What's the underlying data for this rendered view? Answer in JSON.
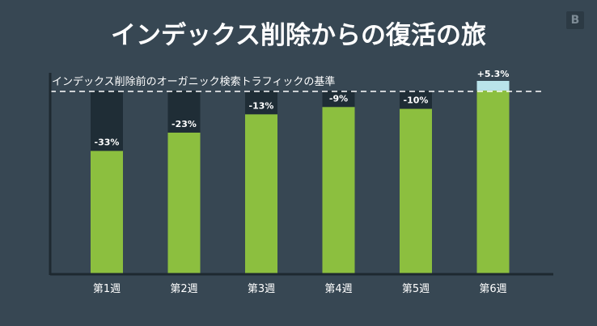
{
  "title": "インデックス削除からの復活の旅",
  "logo_text": "B",
  "chart_data": {
    "type": "bar",
    "baseline_label": "インデックス削除前のオーガニック検索トラフィックの基準",
    "categories": [
      "第1週",
      "第2週",
      "第3週",
      "第4週",
      "第5週",
      "第6週"
    ],
    "values": [
      -33,
      -23,
      -13,
      -9,
      -10,
      5.3
    ],
    "value_labels": [
      "-33%",
      "-23%",
      "-13%",
      "-9%",
      "-10%",
      "+5.3%"
    ],
    "baseline_value": 0,
    "ylim": [
      -100,
      5.3
    ],
    "colors": {
      "bar": "#8cbf3f",
      "deficit": "#1f2d36",
      "surplus": "#b9e3ea",
      "axis": "#1e2930",
      "baseline": "#ffffff"
    }
  }
}
